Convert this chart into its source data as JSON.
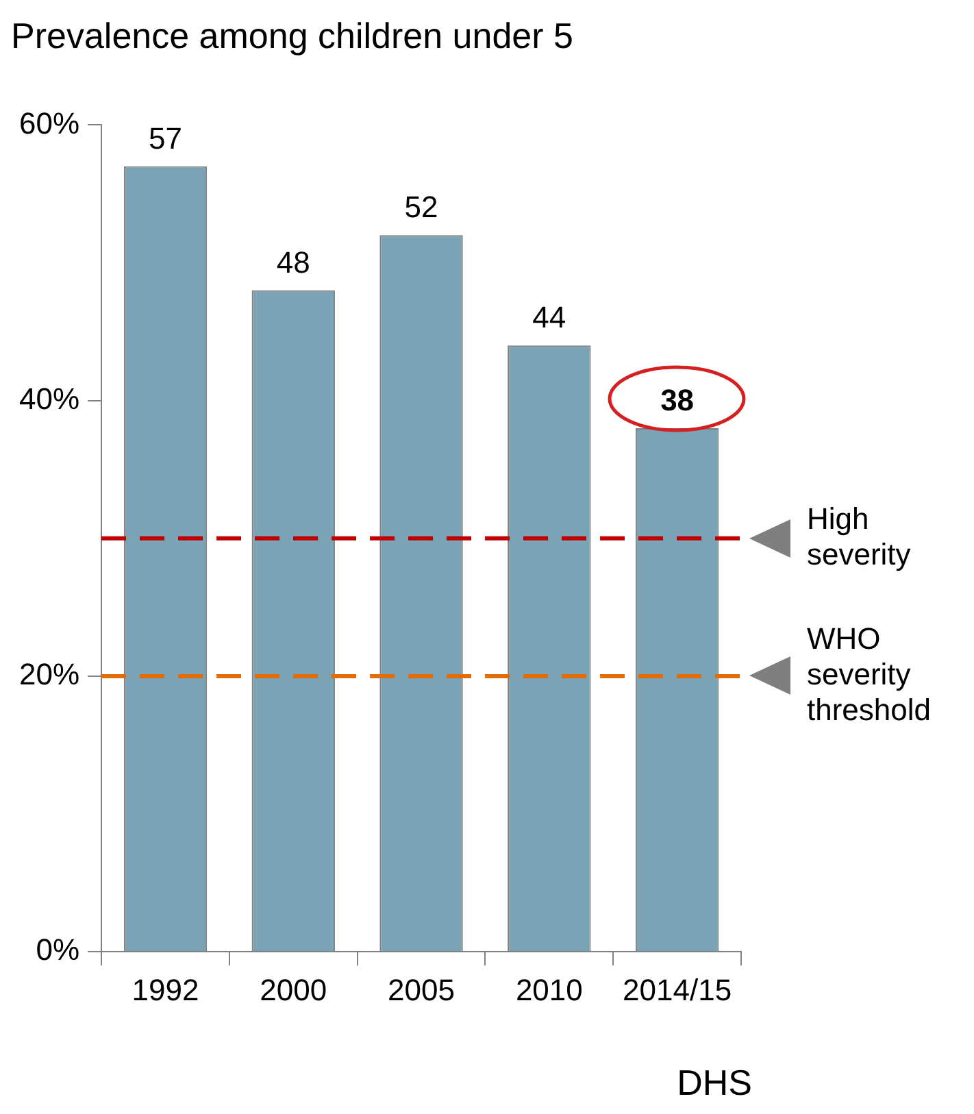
{
  "chart_data": {
    "type": "bar",
    "title": "Prevalence among children under 5",
    "categories": [
      "1992",
      "2000",
      "2005",
      "2010",
      "2014/15"
    ],
    "values": [
      57,
      48,
      52,
      44,
      38
    ],
    "color": "#7aa3b5",
    "ylim": [
      0,
      60
    ],
    "yticks": [
      {
        "value": 0,
        "label": "0%"
      },
      {
        "value": 20,
        "label": "20%"
      },
      {
        "value": 40,
        "label": "40%"
      },
      {
        "value": 60,
        "label": "60%"
      }
    ],
    "grid": false,
    "legend": false,
    "data_labels": true,
    "ref_lines": [
      {
        "axis": "y",
        "value": 30,
        "label": "High severity",
        "color": "#c00000",
        "line_style": "dashed"
      },
      {
        "axis": "y",
        "value": 20,
        "label": "WHO severity threshold",
        "color": "#e36c09",
        "line_style": "dashed"
      }
    ],
    "annotations": [
      "DHS"
    ]
  }
}
